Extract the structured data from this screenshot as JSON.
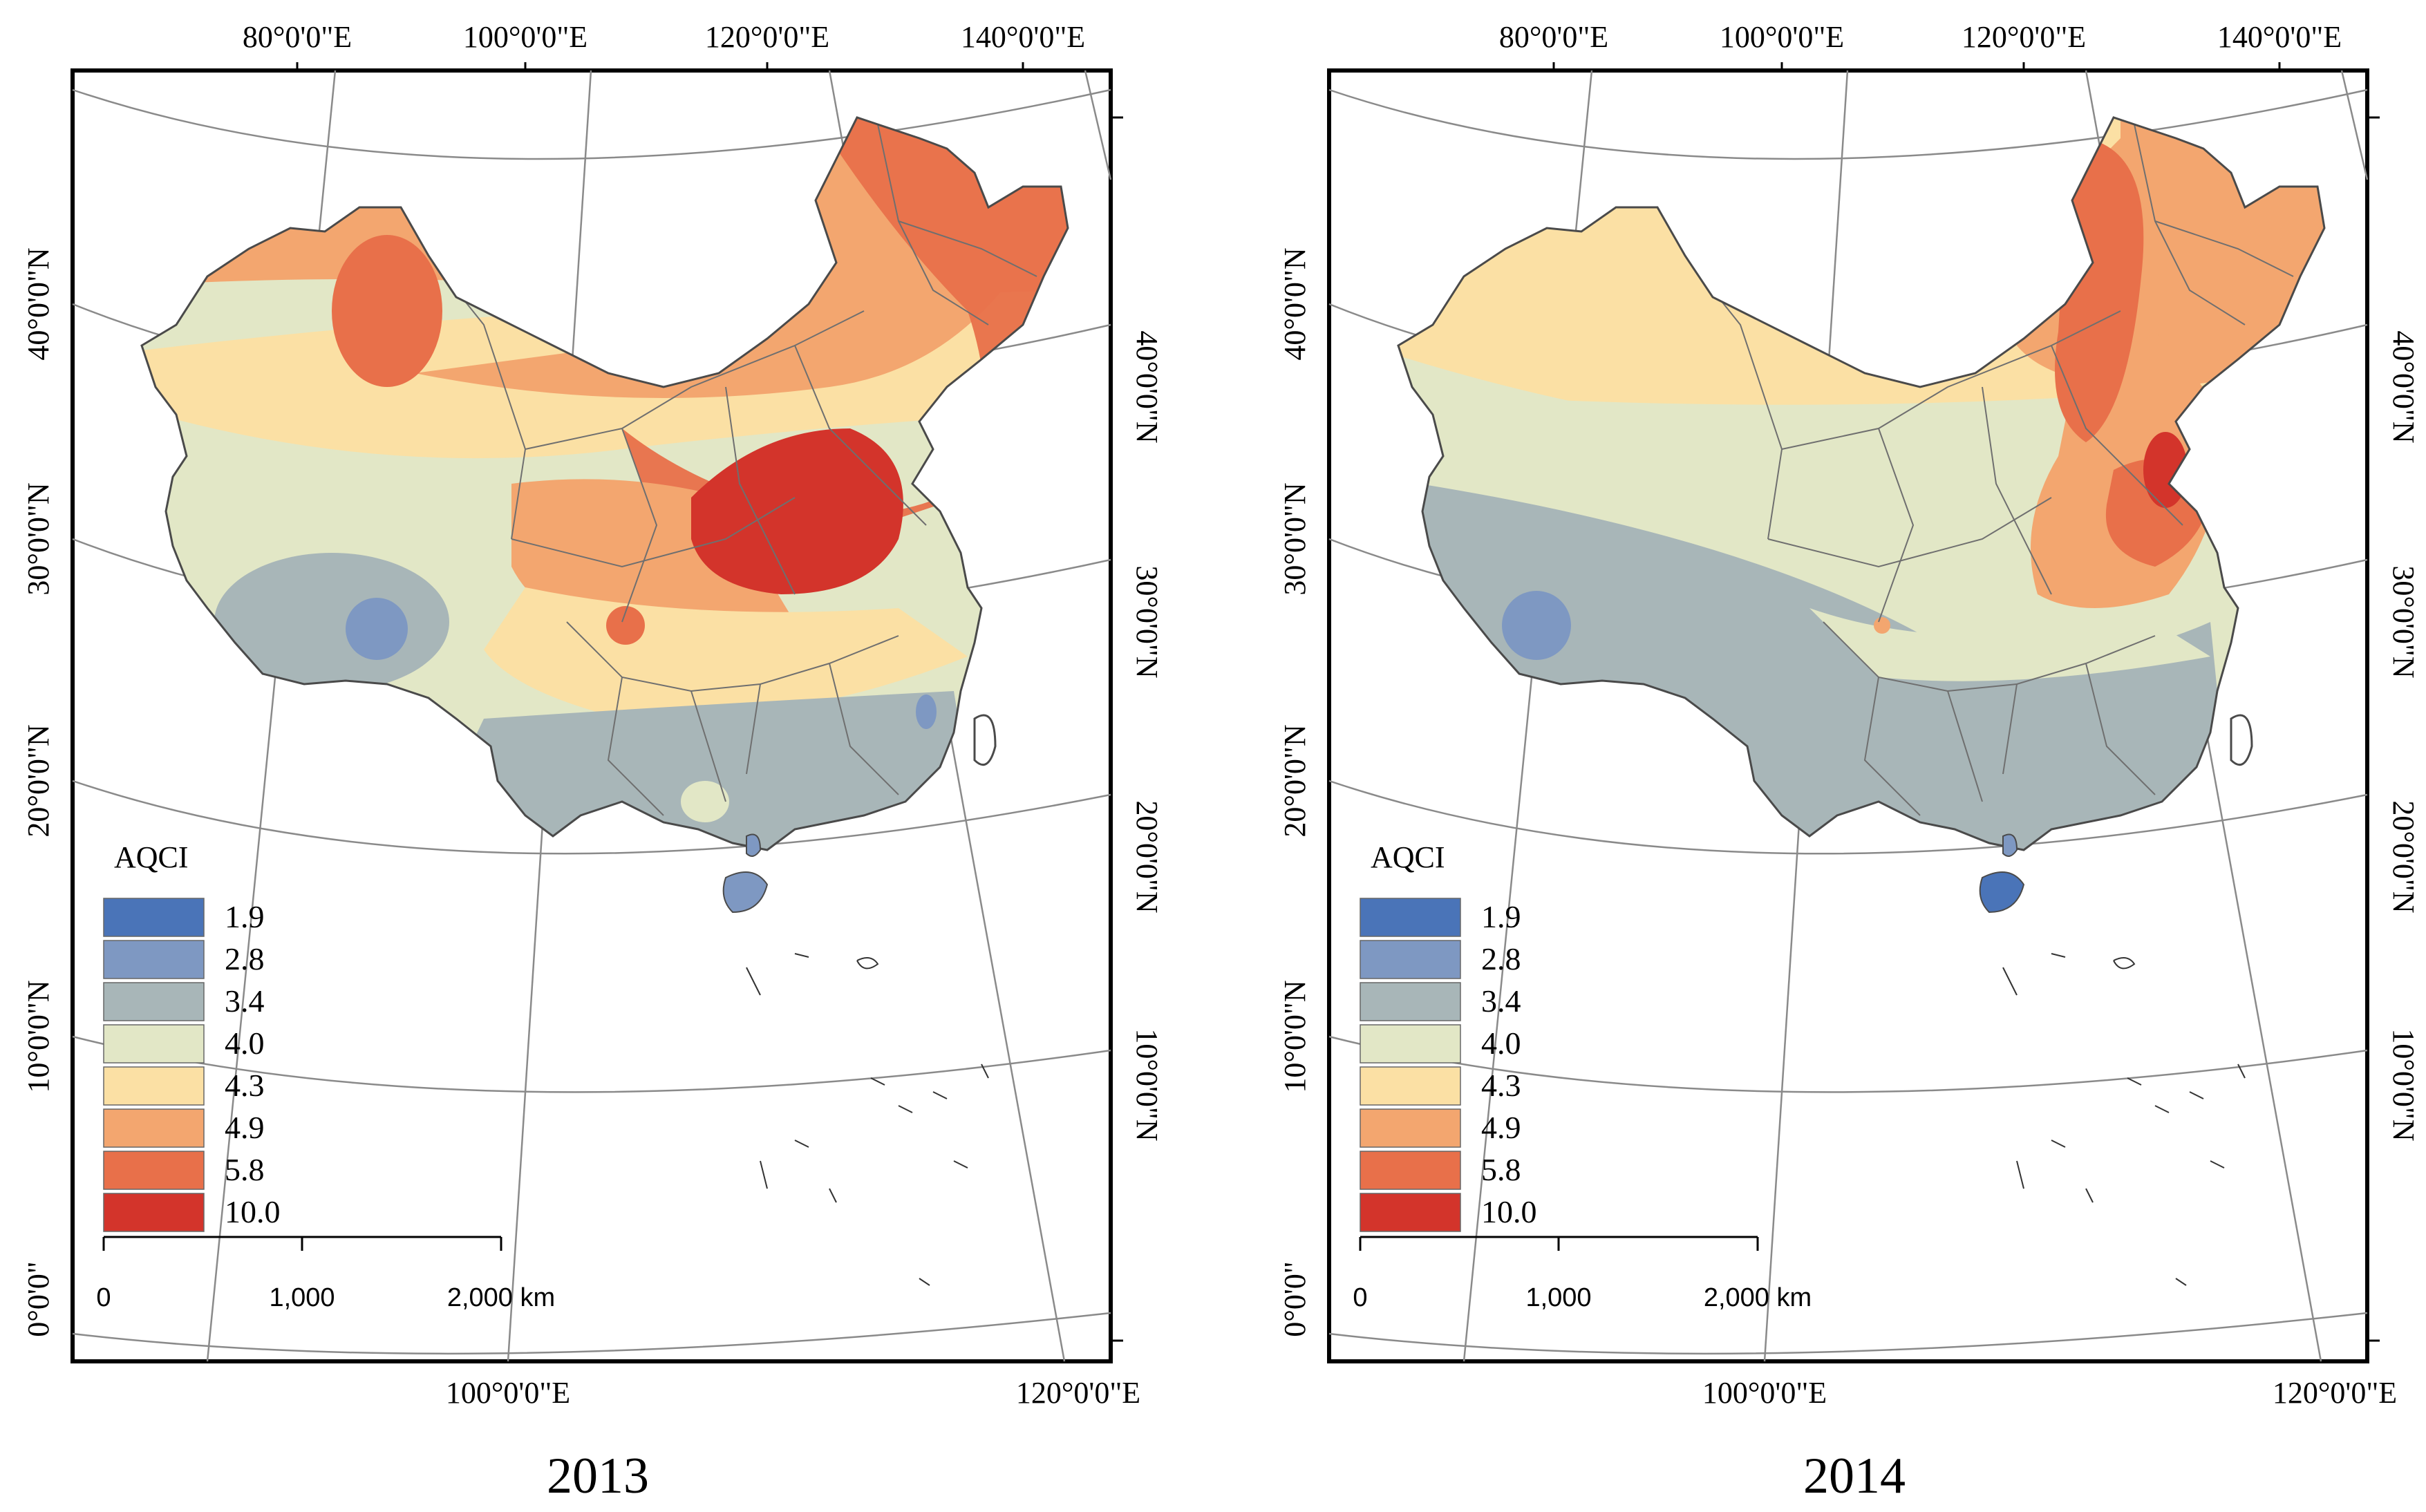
{
  "figure": {
    "panels": [
      {
        "id": "2013",
        "year_label": "2013",
        "top_lon_labels": [
          "80°0'0\"E",
          "100°0'0\"E",
          "120°0'0\"E",
          "140°0'0\"E"
        ],
        "bottom_lon_labels": [
          "100°0'0\"E",
          "120°0'0\"E"
        ],
        "left_lat_labels": [
          "40°0'0\"N",
          "30°0'0\"N",
          "20°0'0\"N",
          "10°0'0\"N",
          "0°0'0\""
        ],
        "right_lat_labels": [
          "40°0'0\"N",
          "30°0'0\"N",
          "20°0'0\"N",
          "10°0'0\"N"
        ],
        "legend_title": "AQCI",
        "legend_classes": [
          "1.9",
          "2.8",
          "3.4",
          "4.0",
          "4.3",
          "4.9",
          "5.8",
          "10.0"
        ],
        "scale_labels": [
          "0",
          "1,000",
          "2,000 km"
        ]
      },
      {
        "id": "2014",
        "year_label": "2014",
        "top_lon_labels": [
          "80°0'0\"E",
          "100°0'0\"E",
          "120°0'0\"E",
          "140°0'0\"E"
        ],
        "bottom_lon_labels": [
          "100°0'0\"E",
          "120°0'0\"E"
        ],
        "left_lat_labels": [
          "40°0'0\"N",
          "30°0'0\"N",
          "20°0'0\"N",
          "10°0'0\"N",
          "0°0'0\""
        ],
        "right_lat_labels": [
          "40°0'0\"N",
          "30°0'0\"N",
          "20°0'0\"N",
          "10°0'0\"N"
        ],
        "legend_title": "AQCI",
        "legend_classes": [
          "1.9",
          "2.8",
          "3.4",
          "4.0",
          "4.3",
          "4.9",
          "5.8",
          "10.0"
        ],
        "scale_labels": [
          "0",
          "1,000",
          "2,000 km"
        ]
      }
    ],
    "colors": {
      "c1_9": "#4a74b8",
      "c2_8": "#7e98c2",
      "c3_4": "#a8b6b8",
      "c4_0": "#e2e7c6",
      "c4_3": "#fbe0a4",
      "c4_9": "#f3a66f",
      "c5_8": "#e8704a",
      "c10_0": "#d3342b"
    }
  }
}
